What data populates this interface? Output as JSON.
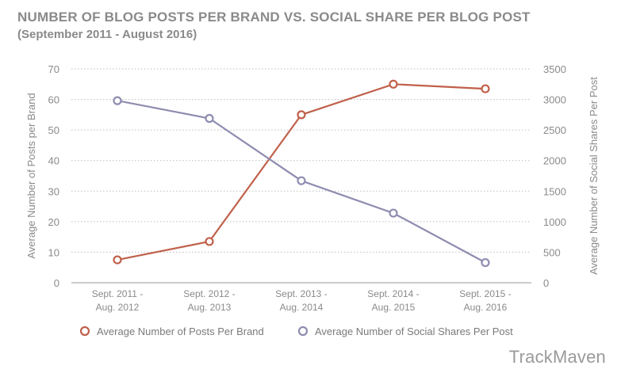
{
  "chart_data": {
    "type": "line",
    "title": "NUMBER OF BLOG POSTS PER BRAND VS. SOCIAL SHARE PER BLOG POST",
    "subtitle": "(September 2011 - August 2016)",
    "categories": [
      [
        "Sept. 2011 -",
        "Aug. 2012"
      ],
      [
        "Sept. 2012 -",
        "Aug. 2013"
      ],
      [
        "Sept. 2013 -",
        "Aug. 2014"
      ],
      [
        "Sept. 2014 -",
        "Aug. 2015"
      ],
      [
        "Sept. 2015 -",
        "Aug. 2016"
      ]
    ],
    "ylabel_left": "Average Number of Posts per Brand",
    "ylabel_right": "Average Number of Social Shares Per Post",
    "ylim_left": [
      0,
      70
    ],
    "ylim_right": [
      0,
      3500
    ],
    "yticks_left": [
      0,
      10,
      20,
      30,
      40,
      50,
      60,
      70
    ],
    "yticks_right": [
      0,
      500,
      1000,
      1500,
      2000,
      2500,
      3000,
      3500
    ],
    "grid": true,
    "series": [
      {
        "name": "Average Number of Posts Per Brand",
        "axis": "left",
        "color": "#c0604a",
        "values": [
          7.5,
          13.5,
          55,
          65,
          63.5
        ]
      },
      {
        "name": "Average Number of Social Shares Per Post",
        "axis": "right",
        "color": "#8e8cb0",
        "values": [
          2980,
          2690,
          1670,
          1140,
          330
        ]
      }
    ],
    "legend_position": "bottom"
  },
  "watermark": "TrackMaven"
}
